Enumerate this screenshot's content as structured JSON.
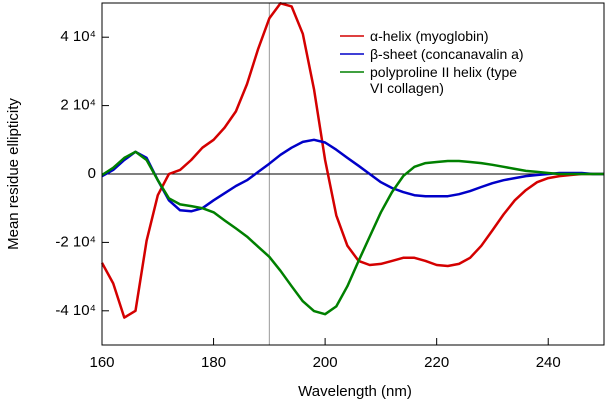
{
  "chart_data": {
    "type": "line",
    "x_label": "Wavelength (nm)",
    "y_label": "Mean residue ellipticity",
    "x": [
      160,
      162,
      164,
      166,
      168,
      170,
      172,
      174,
      176,
      178,
      180,
      182,
      184,
      186,
      188,
      190,
      192,
      194,
      196,
      198,
      200,
      202,
      204,
      206,
      208,
      210,
      212,
      214,
      216,
      218,
      220,
      222,
      224,
      226,
      228,
      230,
      232,
      234,
      236,
      238,
      240,
      242,
      244,
      246,
      248,
      250
    ],
    "series": [
      {
        "name": "α-helix (myoglobin)",
        "color": "#d40000",
        "values": [
          -26000,
          -32000,
          -42000,
          -40000,
          -19500,
          -6200,
          0,
          1200,
          4100,
          7700,
          10000,
          13600,
          18300,
          26300,
          36600,
          45500,
          49900,
          49000,
          41000,
          24800,
          4100,
          -12100,
          -21000,
          -25400,
          -26600,
          -26300,
          -25400,
          -24500,
          -24500,
          -25400,
          -26600,
          -26900,
          -26300,
          -24500,
          -21000,
          -16500,
          -11800,
          -7700,
          -4700,
          -2400,
          -1200,
          -600,
          -300,
          0,
          0,
          0
        ]
      },
      {
        "name": "β-sheet (concanavalin a)",
        "color": "#0000c8",
        "values": [
          -600,
          1200,
          4100,
          6500,
          4700,
          -1800,
          -7700,
          -10600,
          -10900,
          -10000,
          -7700,
          -5600,
          -3500,
          -1800,
          600,
          3000,
          5600,
          7700,
          9400,
          10000,
          9200,
          7100,
          4700,
          2400,
          0,
          -2400,
          -4100,
          -5300,
          -6200,
          -6500,
          -6500,
          -6500,
          -5900,
          -5000,
          -3800,
          -2700,
          -1800,
          -1200,
          -600,
          -300,
          0,
          300,
          300,
          300,
          0,
          0
        ]
      },
      {
        "name": "polyproline II helix (type VI collagen)",
        "color": "#008000",
        "values": [
          -300,
          1800,
          4700,
          6500,
          4100,
          -1800,
          -7100,
          -8900,
          -9400,
          -10000,
          -11200,
          -13600,
          -15900,
          -18300,
          -21300,
          -24200,
          -28300,
          -32800,
          -37200,
          -40100,
          -41000,
          -38700,
          -32800,
          -25400,
          -18300,
          -11200,
          -5300,
          -600,
          2100,
          3200,
          3500,
          3800,
          3800,
          3500,
          3200,
          2700,
          2100,
          1500,
          900,
          600,
          300,
          0,
          0,
          0,
          0,
          0
        ]
      }
    ],
    "xlim": [
      160,
      250
    ],
    "xticks": [
      160,
      180,
      200,
      220,
      240
    ],
    "ylim": [
      -50000,
      50000
    ],
    "yticks": [
      {
        "value": -40000,
        "label": "-4 10⁴"
      },
      {
        "value": -20000,
        "label": "-2 10⁴"
      },
      0,
      {
        "value": 20000,
        "label": "2 10⁴"
      },
      {
        "value": 40000,
        "label": "4 10⁴"
      }
    ],
    "vline": 190,
    "zero_line": true,
    "legend": "upper right"
  }
}
